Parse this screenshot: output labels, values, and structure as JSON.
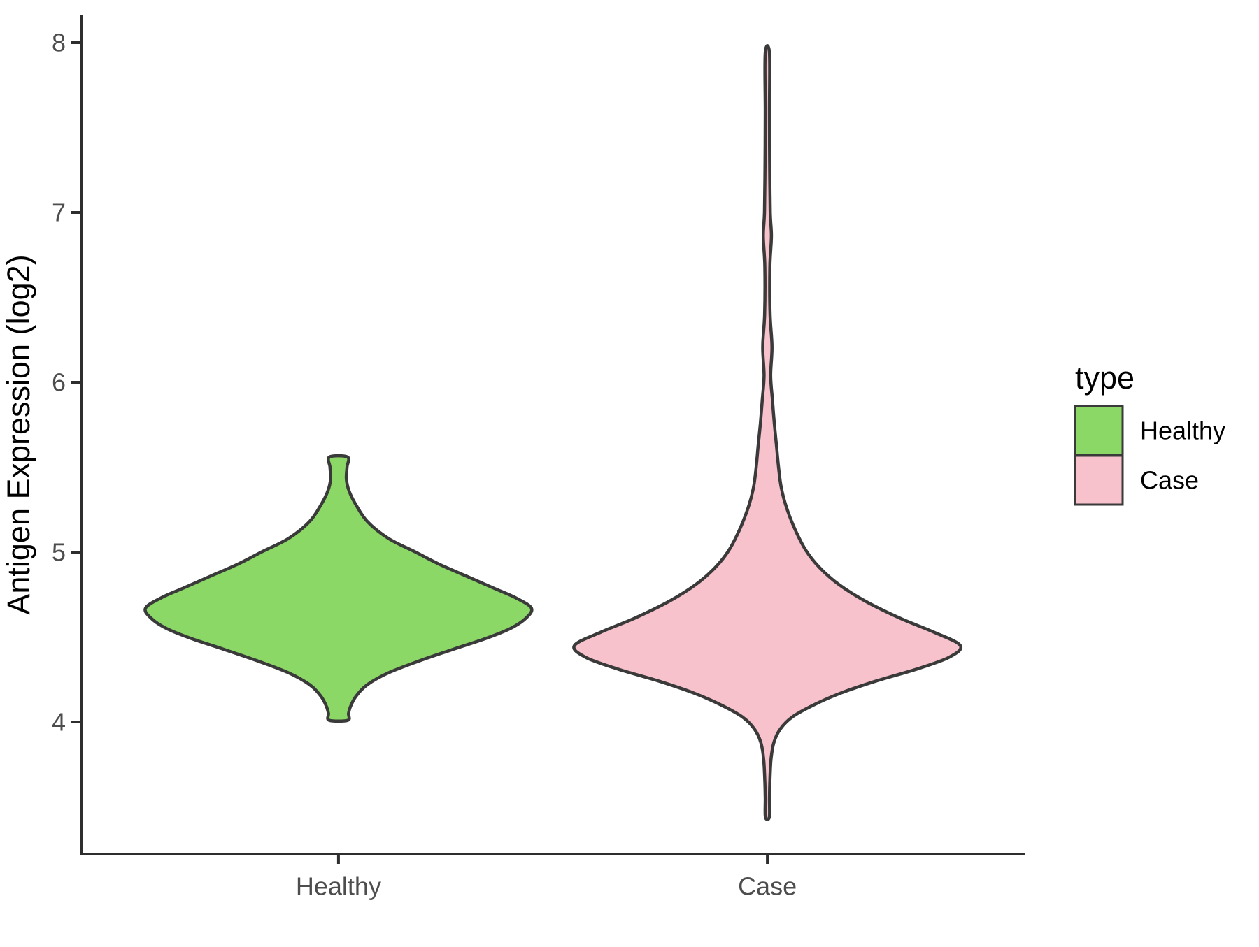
{
  "figure": {
    "background": "#ffffff",
    "axis_color": "#2e2e2e",
    "tick_label_color": "#4d4d4d",
    "title_color": "#000000",
    "outline_color": "#3a3a3a"
  },
  "chart_data": {
    "type": "violin",
    "title": "",
    "xlabel": "",
    "ylabel": "Antigen Expression (log2)",
    "categories": [
      "Healthy",
      "Case"
    ],
    "y_ticks": [
      4,
      5,
      6,
      7,
      8
    ],
    "ylim_shown": [
      3.22,
      8.16
    ],
    "grid": false,
    "legend": {
      "title": "type",
      "position": "right",
      "entries": [
        {
          "label": "Healthy",
          "color": "#8cd867"
        },
        {
          "label": "Case",
          "color": "#f8c2cd"
        }
      ]
    },
    "series": [
      {
        "name": "Healthy",
        "fill": "#8cd867",
        "value_range": [
          4.01,
          5.56
        ],
        "peak_value": 4.67,
        "density_profile": [
          [
            5.56,
            0.047
          ],
          [
            5.5,
            0.044
          ],
          [
            5.43,
            0.041
          ],
          [
            5.36,
            0.055
          ],
          [
            5.28,
            0.09
          ],
          [
            5.18,
            0.15
          ],
          [
            5.08,
            0.26
          ],
          [
            5.0,
            0.4
          ],
          [
            4.93,
            0.52
          ],
          [
            4.86,
            0.66
          ],
          [
            4.79,
            0.8
          ],
          [
            4.73,
            0.92
          ],
          [
            4.67,
            1.0
          ],
          [
            4.61,
            0.97
          ],
          [
            4.55,
            0.89
          ],
          [
            4.49,
            0.76
          ],
          [
            4.43,
            0.6
          ],
          [
            4.36,
            0.42
          ],
          [
            4.29,
            0.26
          ],
          [
            4.22,
            0.15
          ],
          [
            4.15,
            0.09
          ],
          [
            4.09,
            0.062
          ],
          [
            4.05,
            0.052
          ],
          [
            4.01,
            0.048
          ]
        ]
      },
      {
        "name": "Case",
        "fill": "#f8c2cd",
        "value_range": [
          3.44,
          7.94
        ],
        "peak_value": 4.45,
        "density_profile": [
          [
            7.94,
            0.011
          ],
          [
            7.6,
            0.011
          ],
          [
            7.3,
            0.012
          ],
          [
            7.0,
            0.015
          ],
          [
            6.86,
            0.021
          ],
          [
            6.68,
            0.013
          ],
          [
            6.4,
            0.014
          ],
          [
            6.21,
            0.024
          ],
          [
            6.04,
            0.017
          ],
          [
            5.9,
            0.026
          ],
          [
            5.76,
            0.036
          ],
          [
            5.62,
            0.048
          ],
          [
            5.5,
            0.058
          ],
          [
            5.38,
            0.072
          ],
          [
            5.26,
            0.1
          ],
          [
            5.13,
            0.145
          ],
          [
            5.01,
            0.2
          ],
          [
            4.91,
            0.27
          ],
          [
            4.81,
            0.37
          ],
          [
            4.71,
            0.51
          ],
          [
            4.61,
            0.69
          ],
          [
            4.53,
            0.86
          ],
          [
            4.45,
            1.0
          ],
          [
            4.38,
            0.94
          ],
          [
            4.31,
            0.77
          ],
          [
            4.24,
            0.56
          ],
          [
            4.17,
            0.38
          ],
          [
            4.1,
            0.24
          ],
          [
            4.03,
            0.13
          ],
          [
            3.96,
            0.068
          ],
          [
            3.88,
            0.034
          ],
          [
            3.78,
            0.019
          ],
          [
            3.65,
            0.013
          ],
          [
            3.55,
            0.011
          ],
          [
            3.44,
            0.01
          ]
        ]
      }
    ]
  }
}
